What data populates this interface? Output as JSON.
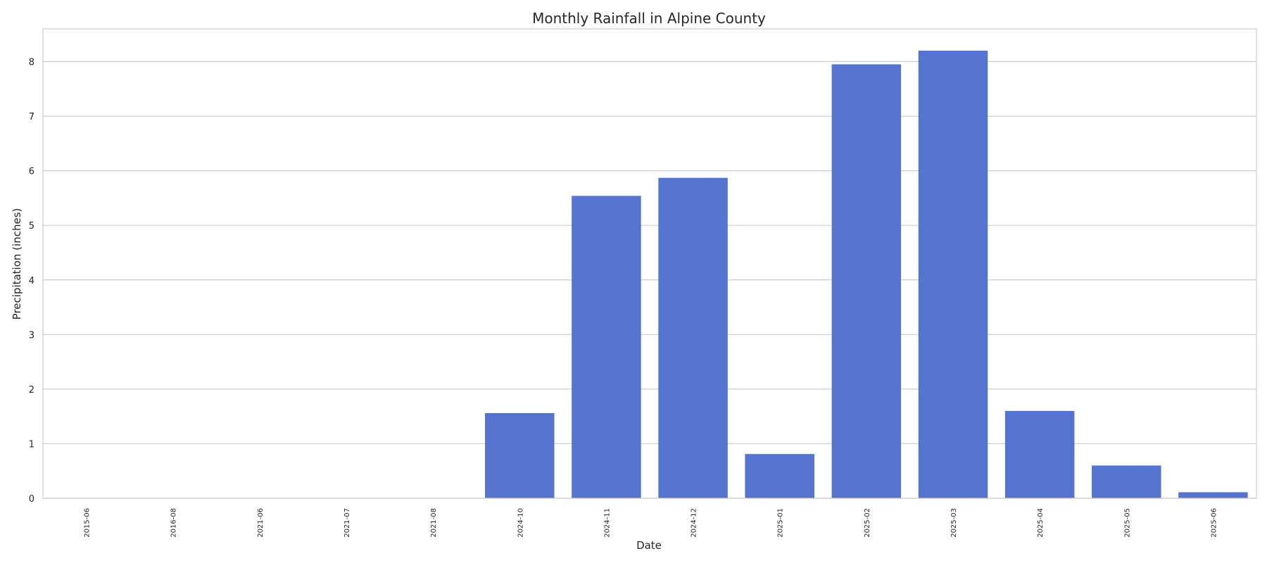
{
  "chart_data": {
    "type": "bar",
    "title": "Monthly Rainfall in Alpine County",
    "xlabel": "Date",
    "ylabel": "Precipitation (inches)",
    "categories": [
      "2015-06",
      "2016-08",
      "2021-06",
      "2021-07",
      "2021-08",
      "2024-10",
      "2024-11",
      "2024-12",
      "2025-01",
      "2025-02",
      "2025-03",
      "2025-04",
      "2025-05",
      "2025-06"
    ],
    "values": [
      0,
      0,
      0,
      0,
      0,
      1.56,
      5.54,
      5.87,
      0.81,
      7.95,
      8.2,
      1.6,
      0.6,
      0.11
    ],
    "ylim": [
      0,
      8.6
    ],
    "yticks": [
      0,
      1,
      2,
      3,
      4,
      5,
      6,
      7,
      8
    ],
    "grid": true,
    "bar_color": "#5574d0"
  }
}
